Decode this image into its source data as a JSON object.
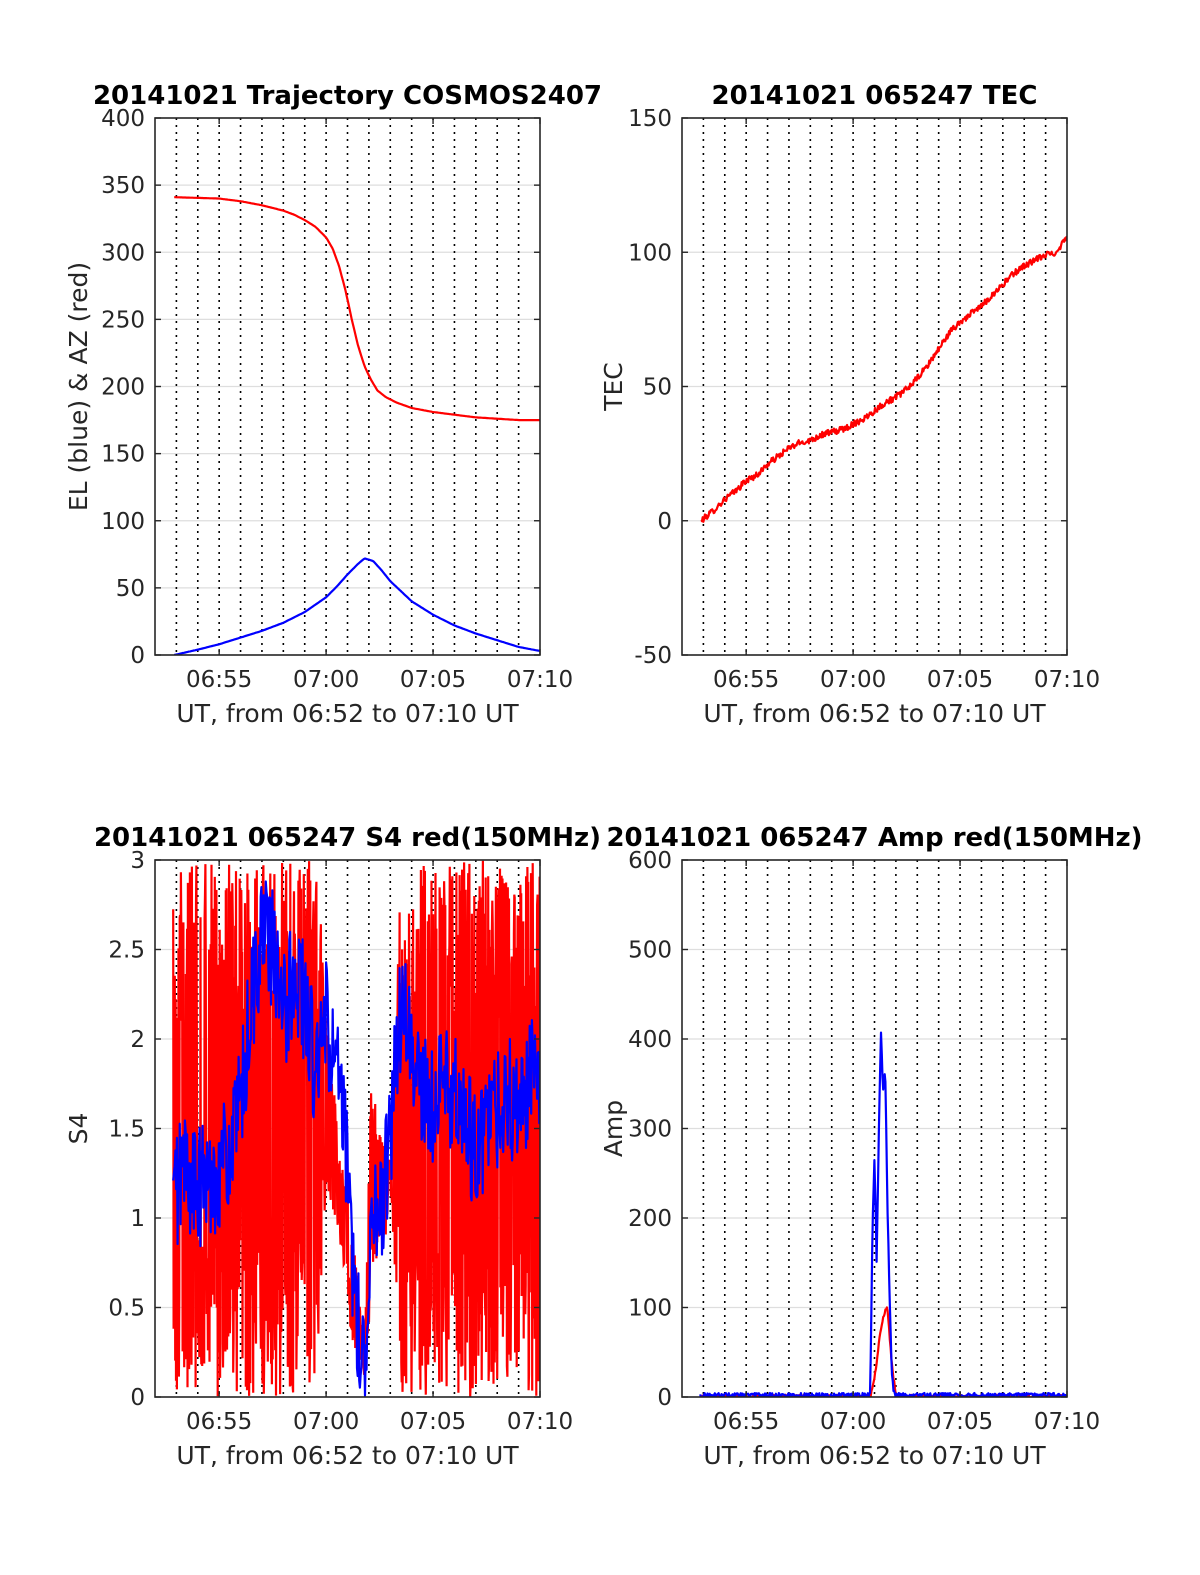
{
  "chart_data": [
    {
      "type": "line",
      "title": "20141021 Trajectory COSMOS2407",
      "xlabel": "UT, from 06:52 to 07:10 UT",
      "ylabel": "EL (blue) & AZ (red)",
      "x_tick_labels": [
        "06:55",
        "07:00",
        "07:05",
        "07:10"
      ],
      "x_tick_minutes": [
        415,
        420,
        425,
        430
      ],
      "xlim_minutes": [
        412,
        430
      ],
      "y_ticks": [
        0,
        50,
        100,
        150,
        200,
        250,
        300,
        350,
        400
      ],
      "ylim": [
        0,
        400
      ],
      "grid": true,
      "series": [
        {
          "color": "#ff0000",
          "x_minutes": [
            412.9,
            414,
            415,
            416,
            417,
            418,
            418.5,
            419,
            419.5,
            420,
            420.3,
            420.6,
            420.9,
            421.2,
            421.5,
            421.8,
            422.1,
            422.4,
            422.8,
            423.3,
            424,
            425,
            426,
            427,
            428,
            429,
            430
          ],
          "values": [
            341,
            340.5,
            340,
            338,
            335,
            331,
            328,
            324,
            319,
            311,
            303,
            290,
            272,
            250,
            230,
            215,
            205,
            197,
            192,
            188,
            184,
            181,
            179,
            177,
            176,
            175,
            175
          ]
        },
        {
          "color": "#0000ff",
          "x_minutes": [
            412.9,
            414,
            415,
            416,
            417,
            418,
            419,
            420,
            420.5,
            421,
            421.5,
            421.8,
            422.2,
            422.6,
            423,
            424,
            425,
            426,
            427,
            428,
            429,
            430
          ],
          "values": [
            0,
            4,
            8,
            13,
            18,
            24,
            32,
            43,
            51,
            60,
            68,
            72,
            70,
            63,
            55,
            40,
            30,
            22,
            16,
            11,
            6,
            3
          ]
        }
      ]
    },
    {
      "type": "line",
      "title": "20141021 065247 TEC",
      "xlabel": "UT, from 06:52 to 07:10 UT",
      "ylabel": "TEC",
      "x_tick_labels": [
        "06:55",
        "07:00",
        "07:05",
        "07:10"
      ],
      "x_tick_minutes": [
        415,
        420,
        425,
        430
      ],
      "xlim_minutes": [
        412,
        430
      ],
      "y_ticks": [
        -50,
        0,
        50,
        100,
        150
      ],
      "ylim": [
        -50,
        150
      ],
      "grid": true,
      "series": [
        {
          "color": "#ff0000",
          "x_minutes": [
            412.9,
            413.5,
            414,
            414.5,
            415,
            415.5,
            416,
            416.5,
            417,
            417.5,
            418,
            418.5,
            419,
            419.5,
            420,
            420.5,
            421,
            421.5,
            422,
            422.5,
            423,
            423.5,
            424,
            424.5,
            425,
            425.5,
            426,
            426.5,
            427,
            427.5,
            428,
            428.5,
            429,
            429.5,
            430
          ],
          "values": [
            0,
            4,
            8,
            11,
            15,
            17,
            21,
            24,
            27,
            29,
            30,
            32,
            33,
            34,
            36,
            38,
            41,
            44,
            46,
            49,
            53,
            58,
            64,
            70,
            74,
            77,
            80,
            84,
            88,
            92,
            95,
            97,
            99,
            100,
            106
          ]
        }
      ]
    },
    {
      "type": "line",
      "title": "20141021 065247 S4 red(150MHz)",
      "xlabel": "UT, from 06:52 to 07:10 UT",
      "ylabel": "S4",
      "x_tick_labels": [
        "06:55",
        "07:00",
        "07:05",
        "07:10"
      ],
      "x_tick_minutes": [
        415,
        420,
        425,
        430
      ],
      "xlim_minutes": [
        412,
        430
      ],
      "y_ticks": [
        0,
        0.5,
        1,
        1.5,
        2,
        2.5,
        3
      ],
      "y_tick_labels": [
        "0",
        "0.5",
        "1",
        "1.5",
        "2",
        "2.5",
        "3"
      ],
      "ylim": [
        0,
        3
      ],
      "grid": true,
      "series": [
        {
          "color": "#ff0000",
          "x_minutes": [
            412.85,
            430
          ],
          "values_range": [
            0,
            3
          ],
          "envelope_x_minutes": [
            412.85,
            416.5,
            418,
            419.5,
            420,
            420.6,
            421,
            421.2,
            421.5,
            421.8,
            422.1,
            422.5,
            422.8,
            423,
            423.5,
            424,
            430
          ],
          "envelope_upper": [
            3,
            3,
            3,
            3,
            2.3,
            1.4,
            1.2,
            1.0,
            0.6,
            0.25,
            1.8,
            1.5,
            1.4,
            1.3,
            3,
            3,
            3
          ],
          "envelope_lower": [
            0,
            0,
            0,
            0,
            1.2,
            0.9,
            0.6,
            0.25,
            0.15,
            0.1,
            0.5,
            0.9,
            0.9,
            1.2,
            0.0,
            0.0,
            0.0
          ]
        },
        {
          "color": "#0000ff",
          "x_minutes": [
            412.85,
            413.3,
            414,
            414.5,
            415,
            415.5,
            416,
            416.5,
            417,
            417.5,
            418,
            418.5,
            419,
            419.5,
            420,
            420.5,
            420.9,
            421.2,
            421.5,
            421.8,
            422.1,
            422.5,
            422.9,
            423.5,
            424,
            424.5,
            425,
            425.5,
            426,
            426.5,
            427,
            427.5,
            428,
            428.5,
            429,
            429.5,
            430
          ],
          "values": [
            1.1,
            1.3,
            1.15,
            1.2,
            1.3,
            1.35,
            1.6,
            2.2,
            2.6,
            2.5,
            2.1,
            2.4,
            2.2,
            1.8,
            2.1,
            1.8,
            1.4,
            0.8,
            0.4,
            0.15,
            1.1,
            1.0,
            1.3,
            2.2,
            1.9,
            1.7,
            1.6,
            1.8,
            1.7,
            1.5,
            1.4,
            1.5,
            1.6,
            1.7,
            1.5,
            1.8,
            1.7
          ]
        }
      ]
    },
    {
      "type": "line",
      "title": "20141021 065247 Amp red(150MHz)",
      "xlabel": "UT, from 06:52 to 07:10 UT",
      "ylabel": "Amp",
      "x_tick_labels": [
        "06:55",
        "07:00",
        "07:05",
        "07:10"
      ],
      "x_tick_minutes": [
        415,
        420,
        425,
        430
      ],
      "xlim_minutes": [
        412,
        430
      ],
      "y_ticks": [
        0,
        100,
        200,
        300,
        400,
        500,
        600
      ],
      "ylim": [
        0,
        600
      ],
      "grid": true,
      "series": [
        {
          "color": "#ff0000",
          "x_minutes": [
            412.85,
            420,
            420.8,
            421.0,
            421.2,
            421.4,
            421.6,
            421.8,
            422.0,
            430
          ],
          "values": [
            0,
            0,
            0,
            20,
            60,
            90,
            100,
            40,
            0,
            0
          ]
        },
        {
          "color": "#0000ff",
          "x_minutes": [
            412.85,
            420,
            420.8,
            420.9,
            421.0,
            421.1,
            421.2,
            421.3,
            421.4,
            421.5,
            421.6,
            421.7,
            421.8,
            421.9,
            422.0,
            430
          ],
          "values": [
            2,
            2,
            2,
            180,
            270,
            150,
            290,
            410,
            340,
            370,
            220,
            120,
            30,
            5,
            2,
            2
          ]
        }
      ]
    }
  ]
}
